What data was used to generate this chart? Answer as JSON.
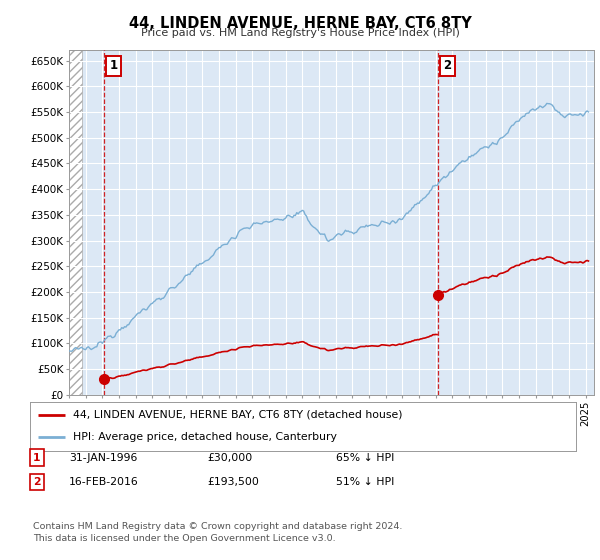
{
  "title": "44, LINDEN AVENUE, HERNE BAY, CT6 8TY",
  "subtitle": "Price paid vs. HM Land Registry's House Price Index (HPI)",
  "ylim": [
    0,
    670000
  ],
  "xlim_start": 1994.0,
  "xlim_end": 2025.5,
  "hpi_color": "#7bafd4",
  "price_color": "#cc0000",
  "sale1_x": 1996.08,
  "sale1_y": 30000,
  "sale1_label": "1",
  "sale2_x": 2016.12,
  "sale2_y": 193500,
  "sale2_label": "2",
  "legend_line1": "44, LINDEN AVENUE, HERNE BAY, CT6 8TY (detached house)",
  "legend_line2": "HPI: Average price, detached house, Canterbury",
  "footnote": "Contains HM Land Registry data © Crown copyright and database right 2024.\nThis data is licensed under the Open Government Licence v3.0.",
  "background_color": "#ffffff",
  "plot_bg_color": "#dce8f5",
  "grid_color": "#ffffff",
  "ytick_labels": [
    "£0",
    "£50K",
    "£100K",
    "£150K",
    "£200K",
    "£250K",
    "£300K",
    "£350K",
    "£400K",
    "£450K",
    "£500K",
    "£550K",
    "£600K",
    "£650K"
  ],
  "ytick_values": [
    0,
    50000,
    100000,
    150000,
    200000,
    250000,
    300000,
    350000,
    400000,
    450000,
    500000,
    550000,
    600000,
    650000
  ]
}
